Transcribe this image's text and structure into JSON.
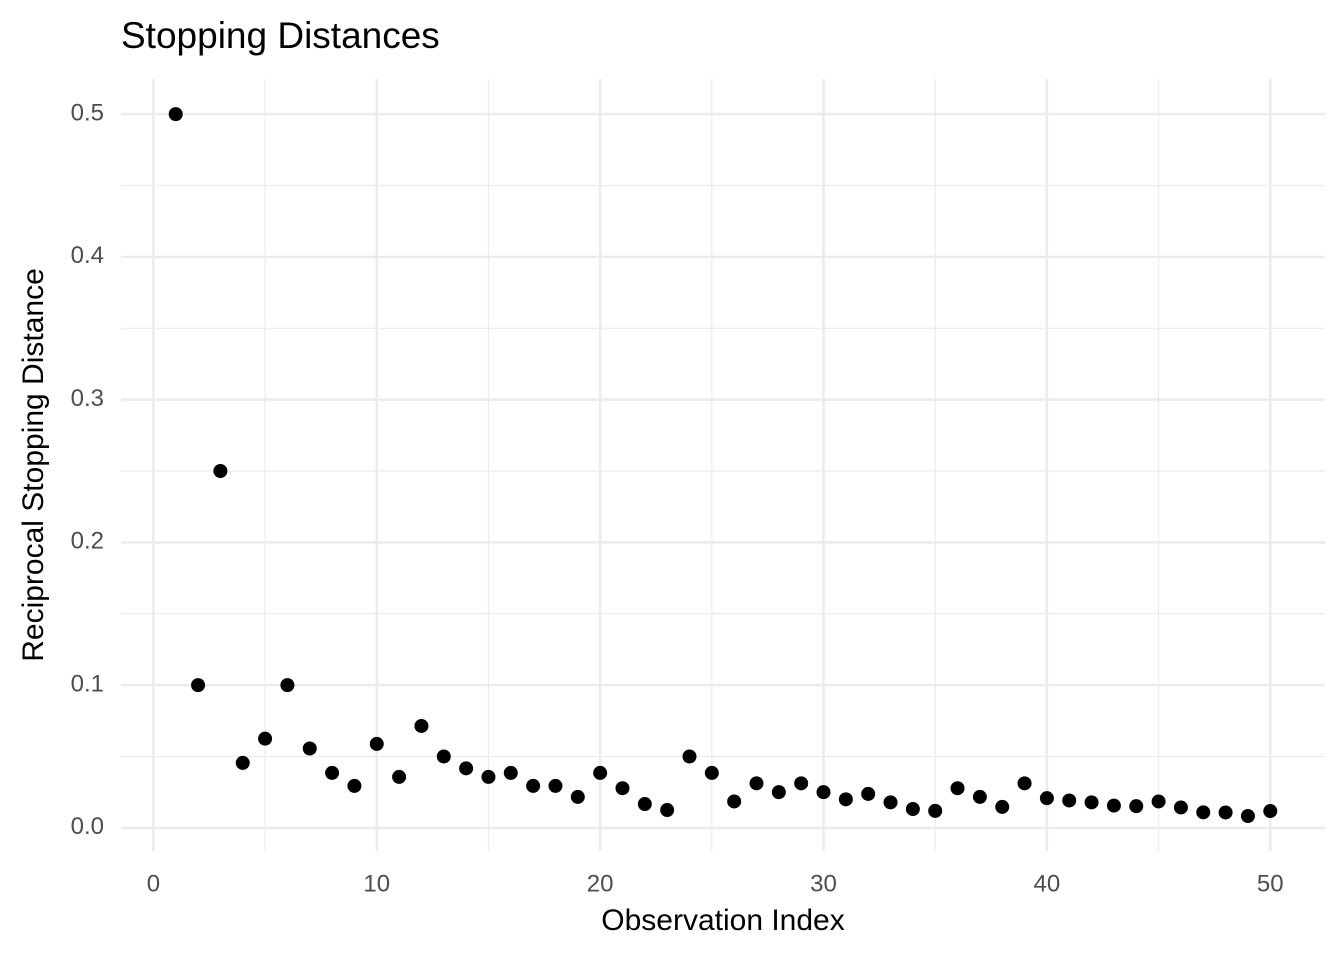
{
  "chart_data": {
    "type": "scatter",
    "title": "Stopping Distances",
    "x_label": "Observation Index",
    "y_label": "Reciprocal Stopping Distance",
    "x": [
      1,
      2,
      3,
      4,
      5,
      6,
      7,
      8,
      9,
      10,
      11,
      12,
      13,
      14,
      15,
      16,
      17,
      18,
      19,
      20,
      21,
      22,
      23,
      24,
      25,
      26,
      27,
      28,
      29,
      30,
      31,
      32,
      33,
      34,
      35,
      36,
      37,
      38,
      39,
      40,
      41,
      42,
      43,
      44,
      45,
      46,
      47,
      48,
      49,
      50
    ],
    "values": [
      0.5,
      0.1,
      0.25,
      0.0455,
      0.0625,
      0.1,
      0.0556,
      0.0385,
      0.0294,
      0.0588,
      0.0357,
      0.0714,
      0.05,
      0.0417,
      0.0357,
      0.0385,
      0.0294,
      0.0294,
      0.0217,
      0.0385,
      0.0278,
      0.0167,
      0.0125,
      0.05,
      0.0385,
      0.0185,
      0.0312,
      0.025,
      0.0312,
      0.025,
      0.02,
      0.0238,
      0.0179,
      0.0132,
      0.0119,
      0.0278,
      0.0217,
      0.0147,
      0.0312,
      0.0208,
      0.0192,
      0.0179,
      0.0156,
      0.0152,
      0.0185,
      0.0143,
      0.0109,
      0.0108,
      0.0083,
      0.0118
    ],
    "color": "#000000",
    "xlim": [
      -1.45,
      52.45
    ],
    "xticks": [
      0,
      10,
      20,
      30,
      40,
      50
    ],
    "ylim": [
      -0.0162,
      0.5246
    ],
    "yticks": [
      {
        "value": 0,
        "label": "0.0"
      },
      0.1,
      0.2,
      0.3,
      0.4,
      0.5
    ],
    "grid": true
  }
}
